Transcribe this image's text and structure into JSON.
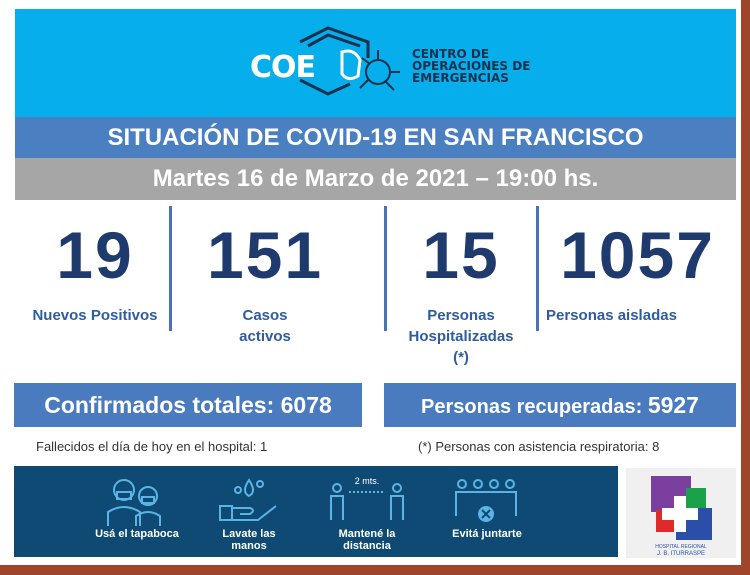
{
  "header": {
    "logo": "COE",
    "org_lines": [
      "CENTRO DE",
      "OPERACIONES DE",
      "EMERGENCIAS"
    ]
  },
  "title": "SITUACIÓN DE COVID-19 EN SAN FRANCISCO",
  "date": "Martes 16 de Marzo de 2021 – 19:00 hs.",
  "stats": [
    {
      "value": "19",
      "label": "Nuevos Positivos"
    },
    {
      "value": "151",
      "label": "Casos activos"
    },
    {
      "value": "15",
      "label": "Personas Hospitalizadas (*)"
    },
    {
      "value": "1057",
      "label": "Personas aisladas"
    }
  ],
  "confirmed": {
    "label": "Confirmados totales:",
    "value": "6078"
  },
  "recovered": {
    "label": "Personas recuperadas:",
    "value": "5927"
  },
  "deaths_note": "Fallecidos el día de hoy en el hospital:  1",
  "respiratory_note": "(*) Personas con asistencia respiratoria: 8",
  "tips": [
    {
      "icon": "mask-icon",
      "label": "Usá el tapaboca"
    },
    {
      "icon": "hand-wash-icon",
      "label": "Lavate las manos"
    },
    {
      "icon": "distance-icon",
      "label": "Mantené la distancia",
      "extra": "2 mts."
    },
    {
      "icon": "no-crowd-icon",
      "label": "Evitá juntarte"
    }
  ],
  "hospital": {
    "name": "HOSPITAL REGIONAL J. B. ITURRASPE"
  },
  "colors": {
    "header": "#06aeeb",
    "title_band": "#4a7fc1",
    "date_band": "#a6a6a6",
    "numbers": "#1f3b6e",
    "banner": "#0e4a73",
    "frame": "#a0452a"
  }
}
